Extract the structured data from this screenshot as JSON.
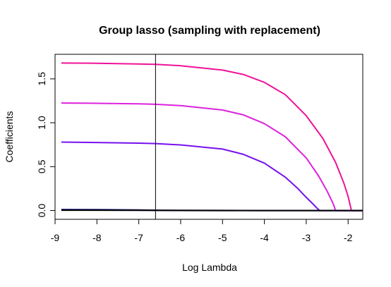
{
  "chart_data": {
    "type": "line",
    "title": "Group lasso (sampling with replacement)",
    "xlabel": "Log Lambda",
    "ylabel": "Coefficients",
    "xlim": [
      -9.0,
      -1.65
    ],
    "ylim": [
      -0.1,
      1.78
    ],
    "x_ticks": [
      "-9",
      "-8",
      "-7",
      "-6",
      "-5",
      "-4",
      "-3",
      "-2"
    ],
    "x_tick_values": [
      -9,
      -8,
      -7,
      -6,
      -5,
      -4,
      -3,
      -2
    ],
    "y_ticks": [
      "0.0",
      "0.5",
      "1.0",
      "1.5"
    ],
    "y_tick_values": [
      0.0,
      0.5,
      1.0,
      1.5
    ],
    "vline_x": -6.6,
    "grid": false,
    "series": [
      {
        "color": "#ee1399",
        "x": [
          -8.85,
          -8.0,
          -7.0,
          -6.6,
          -6.0,
          -5.0,
          -4.5,
          -4.0,
          -3.5,
          -3.0,
          -2.6,
          -2.3,
          -2.1,
          -2.0,
          -1.92,
          -1.65
        ],
        "y": [
          1.68,
          1.678,
          1.67,
          1.665,
          1.65,
          1.6,
          1.55,
          1.46,
          1.32,
          1.08,
          0.82,
          0.55,
          0.31,
          0.16,
          0.0,
          0.0
        ]
      },
      {
        "color": "#dd22dd",
        "x": [
          -8.85,
          -8.0,
          -7.0,
          -6.6,
          -6.0,
          -5.0,
          -4.5,
          -4.0,
          -3.5,
          -3.0,
          -2.7,
          -2.5,
          -2.35,
          -2.3,
          -1.65
        ],
        "y": [
          1.225,
          1.222,
          1.215,
          1.21,
          1.195,
          1.145,
          1.09,
          0.99,
          0.84,
          0.6,
          0.39,
          0.22,
          0.07,
          0.0,
          0.0
        ]
      },
      {
        "color": "#7711ee",
        "x": [
          -8.85,
          -8.0,
          -7.0,
          -6.6,
          -6.0,
          -5.0,
          -4.5,
          -4.0,
          -3.5,
          -3.2,
          -3.0,
          -2.85,
          -2.75,
          -2.68,
          -1.65
        ],
        "y": [
          0.78,
          0.775,
          0.768,
          0.763,
          0.748,
          0.7,
          0.64,
          0.54,
          0.38,
          0.25,
          0.15,
          0.08,
          0.03,
          0.0,
          0.0
        ]
      },
      {
        "color": "#1a1a80",
        "x": [
          -8.85,
          -8.0,
          -7.0,
          -6.6,
          -6.0,
          -5.0,
          -4.0,
          -3.0,
          -1.65
        ],
        "y": [
          0.012,
          0.01,
          0.006,
          0.004,
          0.002,
          0.001,
          0.0,
          0.0,
          0.0
        ]
      },
      {
        "color": "#000000",
        "x": [
          -8.85,
          -7.0,
          -6.6,
          -5.0,
          -3.0,
          -1.65
        ],
        "y": [
          0.004,
          0.002,
          0.001,
          0.0,
          0.0,
          0.0
        ]
      }
    ]
  }
}
